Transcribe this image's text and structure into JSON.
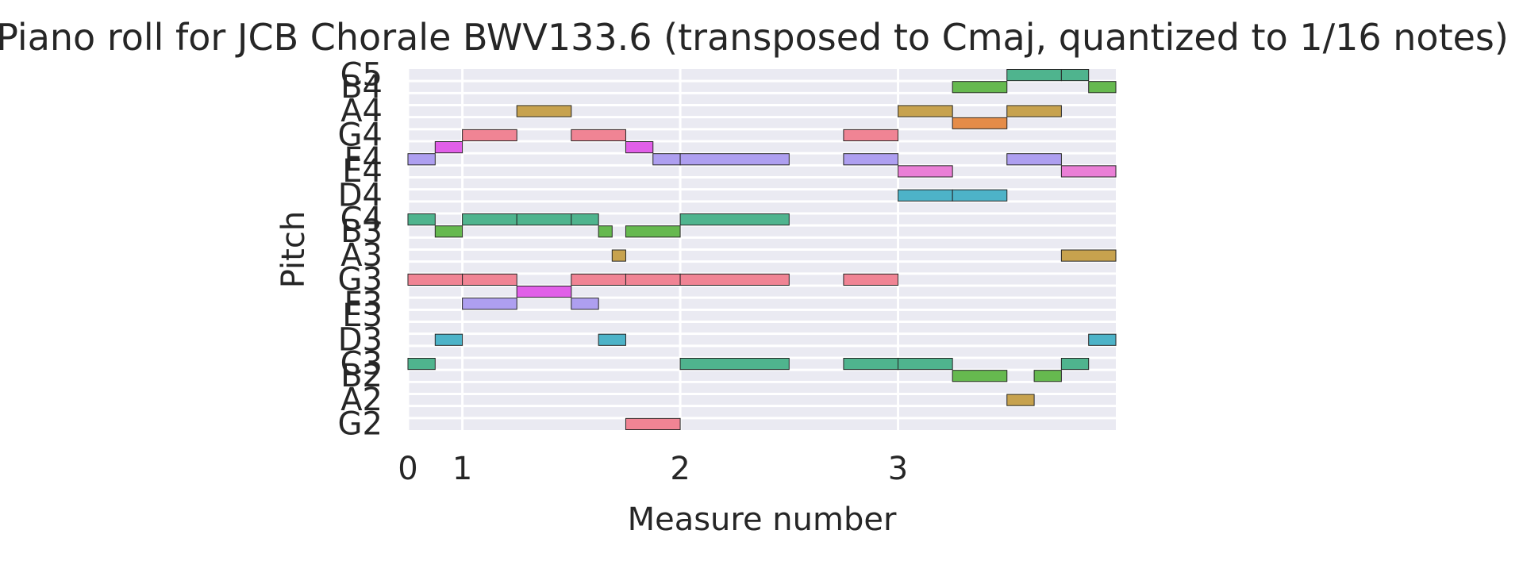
{
  "chart_data": {
    "type": "piano-roll",
    "title": "Piano roll for JCB Chorale BWV133.6 (transposed to Cmaj, quantized to 1/16 notes)",
    "xlabel": "Measure number",
    "ylabel": "Pitch",
    "x_ticks": [
      "0",
      "1",
      "2",
      "3"
    ],
    "x_tick_values": [
      0,
      0.25,
      1.25,
      2.25
    ],
    "xlim": [
      0,
      3.25
    ],
    "pitch_range": [
      43,
      72
    ],
    "y_ticks": [
      {
        "label": "G2",
        "pitch": 43
      },
      {
        "label": "A2",
        "pitch": 45
      },
      {
        "label": "B2",
        "pitch": 47
      },
      {
        "label": "C3",
        "pitch": 48
      },
      {
        "label": "D3",
        "pitch": 50
      },
      {
        "label": "E3",
        "pitch": 52
      },
      {
        "label": "F3",
        "pitch": 53
      },
      {
        "label": "G3",
        "pitch": 55
      },
      {
        "label": "A3",
        "pitch": 57
      },
      {
        "label": "B3",
        "pitch": 59
      },
      {
        "label": "C4",
        "pitch": 60
      },
      {
        "label": "D4",
        "pitch": 62
      },
      {
        "label": "E4",
        "pitch": 64
      },
      {
        "label": "F4",
        "pitch": 65
      },
      {
        "label": "G4",
        "pitch": 67
      },
      {
        "label": "A4",
        "pitch": 69
      },
      {
        "label": "B4",
        "pitch": 71
      },
      {
        "label": "C5",
        "pitch": 72
      }
    ],
    "pitch_class_colors": {
      "C": "#4fb48e",
      "D": "#4db3c8",
      "E": "#ea7fd6",
      "F": "#ae9ff0",
      "G": "#f08494",
      "A": "#c7a24e",
      "B": "#66b94f",
      "D#": "#4cb1b5",
      "E_alt": "#e15fe8",
      "G#": "#e58c48"
    },
    "notes": [
      {
        "pitch": 48,
        "start": 0.0,
        "end": 0.125,
        "color": "#4fb48e"
      },
      {
        "pitch": 55,
        "start": 0.0,
        "end": 0.25,
        "color": "#f08494"
      },
      {
        "pitch": 60,
        "start": 0.0,
        "end": 0.125,
        "color": "#4fb48e"
      },
      {
        "pitch": 65,
        "start": 0.0,
        "end": 0.125,
        "color": "#ae9ff0"
      },
      {
        "pitch": 50,
        "start": 0.125,
        "end": 0.25,
        "color": "#4db3c8"
      },
      {
        "pitch": 59,
        "start": 0.125,
        "end": 0.25,
        "color": "#66b94f"
      },
      {
        "pitch": 66,
        "start": 0.125,
        "end": 0.25,
        "color": "#e15fe8"
      },
      {
        "pitch": 53,
        "start": 0.25,
        "end": 0.5,
        "color": "#ae9ff0"
      },
      {
        "pitch": 55,
        "start": 0.25,
        "end": 0.5,
        "color": "#f08494"
      },
      {
        "pitch": 60,
        "start": 0.25,
        "end": 0.5,
        "color": "#4fb48e"
      },
      {
        "pitch": 67,
        "start": 0.25,
        "end": 0.5,
        "color": "#f08494"
      },
      {
        "pitch": 54,
        "start": 0.5,
        "end": 0.75,
        "color": "#e15fe8"
      },
      {
        "pitch": 60,
        "start": 0.5,
        "end": 0.75,
        "color": "#4fb48e"
      },
      {
        "pitch": 69,
        "start": 0.5,
        "end": 0.75,
        "color": "#c7a24e"
      },
      {
        "pitch": 53,
        "start": 0.75,
        "end": 0.875,
        "color": "#ae9ff0"
      },
      {
        "pitch": 55,
        "start": 0.75,
        "end": 1.0,
        "color": "#f08494"
      },
      {
        "pitch": 60,
        "start": 0.75,
        "end": 0.875,
        "color": "#4fb48e"
      },
      {
        "pitch": 67,
        "start": 0.75,
        "end": 1.0,
        "color": "#f08494"
      },
      {
        "pitch": 50,
        "start": 0.875,
        "end": 1.0,
        "color": "#4db3c8"
      },
      {
        "pitch": 59,
        "start": 0.875,
        "end": 0.9375,
        "color": "#66b94f"
      },
      {
        "pitch": 57,
        "start": 0.9375,
        "end": 1.0,
        "color": "#c7a24e"
      },
      {
        "pitch": 43,
        "start": 1.0,
        "end": 1.25,
        "color": "#f08494"
      },
      {
        "pitch": 55,
        "start": 1.0,
        "end": 1.25,
        "color": "#f08494"
      },
      {
        "pitch": 59,
        "start": 1.0,
        "end": 1.25,
        "color": "#66b94f"
      },
      {
        "pitch": 66,
        "start": 1.0,
        "end": 1.125,
        "color": "#e15fe8"
      },
      {
        "pitch": 65,
        "start": 1.125,
        "end": 1.25,
        "color": "#ae9ff0"
      },
      {
        "pitch": 48,
        "start": 1.25,
        "end": 1.75,
        "color": "#4fb48e"
      },
      {
        "pitch": 55,
        "start": 1.25,
        "end": 1.75,
        "color": "#f08494"
      },
      {
        "pitch": 60,
        "start": 1.25,
        "end": 1.75,
        "color": "#4fb48e"
      },
      {
        "pitch": 65,
        "start": 1.25,
        "end": 1.75,
        "color": "#ae9ff0"
      },
      {
        "pitch": 48,
        "start": 2.0,
        "end": 2.25,
        "color": "#4fb48e"
      },
      {
        "pitch": 55,
        "start": 2.0,
        "end": 2.25,
        "color": "#f08494"
      },
      {
        "pitch": 65,
        "start": 2.0,
        "end": 2.25,
        "color": "#ae9ff0"
      },
      {
        "pitch": 67,
        "start": 2.0,
        "end": 2.25,
        "color": "#f08494"
      },
      {
        "pitch": 48,
        "start": 2.25,
        "end": 2.5,
        "color": "#4fb48e"
      },
      {
        "pitch": 62,
        "start": 2.25,
        "end": 2.5,
        "color": "#4db3c8"
      },
      {
        "pitch": 64,
        "start": 2.25,
        "end": 2.5,
        "color": "#ea7fd6"
      },
      {
        "pitch": 69,
        "start": 2.25,
        "end": 2.5,
        "color": "#c7a24e"
      },
      {
        "pitch": 47,
        "start": 2.5,
        "end": 2.75,
        "color": "#66b94f"
      },
      {
        "pitch": 62,
        "start": 2.5,
        "end": 2.75,
        "color": "#4db3c8"
      },
      {
        "pitch": 68,
        "start": 2.5,
        "end": 2.75,
        "color": "#e58c48"
      },
      {
        "pitch": 71,
        "start": 2.5,
        "end": 2.75,
        "color": "#66b94f"
      },
      {
        "pitch": 45,
        "start": 2.75,
        "end": 2.875,
        "color": "#c7a24e"
      },
      {
        "pitch": 65,
        "start": 2.75,
        "end": 3.0,
        "color": "#ae9ff0"
      },
      {
        "pitch": 69,
        "start": 2.75,
        "end": 3.0,
        "color": "#c7a24e"
      },
      {
        "pitch": 72,
        "start": 2.75,
        "end": 3.0,
        "color": "#4fb48e"
      },
      {
        "pitch": 47,
        "start": 2.875,
        "end": 3.0,
        "color": "#66b94f"
      },
      {
        "pitch": 48,
        "start": 3.0,
        "end": 3.125,
        "color": "#4fb48e"
      },
      {
        "pitch": 57,
        "start": 3.0,
        "end": 3.25,
        "color": "#c7a24e"
      },
      {
        "pitch": 64,
        "start": 3.0,
        "end": 3.25,
        "color": "#ea7fd6"
      },
      {
        "pitch": 72,
        "start": 3.0,
        "end": 3.125,
        "color": "#4fb48e"
      },
      {
        "pitch": 50,
        "start": 3.125,
        "end": 3.25,
        "color": "#4db3c8"
      },
      {
        "pitch": 71,
        "start": 3.125,
        "end": 3.25,
        "color": "#66b94f"
      }
    ]
  }
}
